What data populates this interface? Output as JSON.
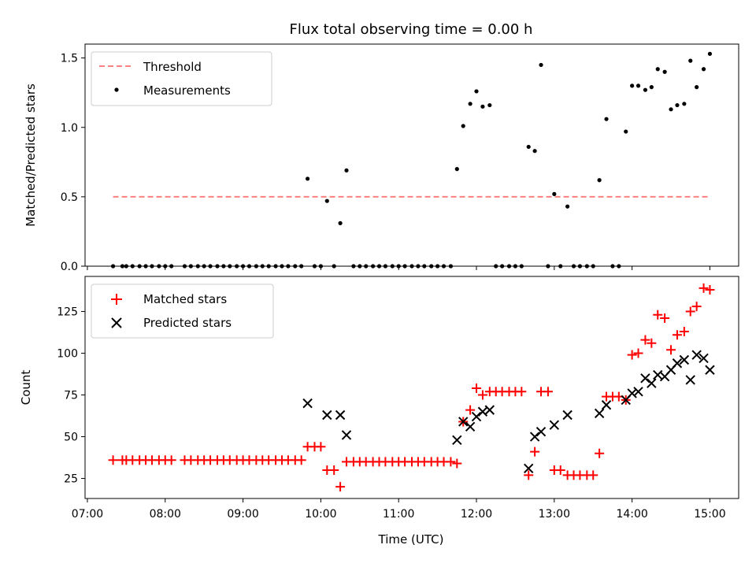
{
  "chart_data": {
    "title": "Flux total observing time = 0.00 h",
    "xlabel": "Time (UTC)",
    "x_tick_labels": [
      "07:00",
      "08:00",
      "09:00",
      "10:00",
      "11:00",
      "12:00",
      "13:00",
      "14:00",
      "15:00"
    ],
    "x_ticks_hours": [
      7,
      8,
      9,
      10,
      11,
      12,
      13,
      14,
      15
    ],
    "xlim_hours": [
      6.97,
      15.37
    ],
    "panels": [
      {
        "type": "scatter",
        "ylabel": "Matched/Predicted stars",
        "ylim": [
          0,
          1.6
        ],
        "y_ticks": [
          0.0,
          0.5,
          1.0,
          1.5
        ],
        "y_tick_labels": [
          "0.0",
          "0.5",
          "1.0",
          "1.5"
        ],
        "legend": {
          "position": "top-left",
          "entries": [
            "Threshold",
            "Measurements"
          ]
        },
        "threshold": {
          "name": "Threshold",
          "value": 0.5,
          "x_range_hours": [
            7.33,
            15.0
          ],
          "color": "#ff8080",
          "style": "dashed"
        },
        "series": [
          {
            "name": "Measurements",
            "color": "#000000",
            "marker": "dot",
            "x_hours": [
              7.33,
              7.45,
              7.5,
              7.58,
              7.67,
              7.75,
              7.83,
              7.92,
              8.0,
              8.08,
              8.25,
              8.33,
              8.42,
              8.5,
              8.58,
              8.67,
              8.75,
              8.83,
              8.92,
              9.0,
              9.08,
              9.17,
              9.25,
              9.33,
              9.42,
              9.5,
              9.58,
              9.67,
              9.75,
              9.83,
              9.92,
              10.0,
              10.08,
              10.17,
              10.25,
              10.33,
              10.42,
              10.5,
              10.58,
              10.67,
              10.75,
              10.83,
              10.92,
              11.0,
              11.08,
              11.17,
              11.25,
              11.33,
              11.42,
              11.5,
              11.58,
              11.67,
              11.75,
              11.83,
              11.92,
              12.0,
              12.08,
              12.17,
              12.25,
              12.33,
              12.42,
              12.5,
              12.58,
              12.67,
              12.75,
              12.83,
              12.92,
              13.0,
              13.08,
              13.17,
              13.25,
              13.33,
              13.42,
              13.5,
              13.58,
              13.67,
              13.75,
              13.83,
              13.92,
              14.0,
              14.08,
              14.17,
              14.25,
              14.33,
              14.42,
              14.5,
              14.58,
              14.67,
              14.75,
              14.83,
              14.92,
              15.0
            ],
            "y": [
              0,
              0,
              0,
              0,
              0,
              0,
              0,
              0,
              0,
              0,
              0,
              0,
              0,
              0,
              0,
              0,
              0,
              0,
              0,
              0,
              0,
              0,
              0,
              0,
              0,
              0,
              0,
              0,
              0,
              0.63,
              0,
              0,
              0.47,
              0,
              0.31,
              0.69,
              0,
              0,
              0,
              0,
              0,
              0,
              0,
              0,
              0,
              0,
              0,
              0,
              0,
              0,
              0,
              0,
              0.7,
              1.01,
              1.17,
              1.26,
              1.15,
              1.16,
              0,
              0,
              0,
              0,
              0,
              0.86,
              0.83,
              1.45,
              0,
              0.52,
              0,
              0.43,
              0,
              0,
              0,
              0,
              0.62,
              1.06,
              0,
              0,
              0.97,
              1.3,
              1.3,
              1.27,
              1.29,
              1.42,
              1.4,
              1.13,
              1.16,
              1.17,
              1.48,
              1.29,
              1.42,
              1.53
            ]
          }
        ]
      },
      {
        "type": "scatter",
        "ylabel": "Count",
        "ylim": [
          13,
          146
        ],
        "y_ticks": [
          25,
          50,
          75,
          100,
          125
        ],
        "y_tick_labels": [
          "25",
          "50",
          "75",
          "100",
          "125"
        ],
        "legend": {
          "position": "top-left",
          "entries": [
            "Matched stars",
            "Predicted stars"
          ]
        },
        "series": [
          {
            "name": "Matched stars",
            "color": "#ff0000",
            "marker": "plus",
            "x_hours": [
              7.33,
              7.45,
              7.5,
              7.58,
              7.67,
              7.75,
              7.83,
              7.92,
              8.0,
              8.08,
              8.25,
              8.33,
              8.42,
              8.5,
              8.58,
              8.67,
              8.75,
              8.83,
              8.92,
              9.0,
              9.08,
              9.17,
              9.25,
              9.33,
              9.42,
              9.5,
              9.58,
              9.67,
              9.75,
              9.83,
              9.92,
              10.0,
              10.08,
              10.17,
              10.25,
              10.33,
              10.42,
              10.5,
              10.58,
              10.67,
              10.75,
              10.83,
              10.92,
              11.0,
              11.08,
              11.17,
              11.25,
              11.33,
              11.42,
              11.5,
              11.58,
              11.67,
              11.75,
              11.83,
              11.92,
              12.0,
              12.08,
              12.17,
              12.25,
              12.33,
              12.42,
              12.5,
              12.58,
              12.67,
              12.75,
              12.83,
              12.92,
              13.0,
              13.08,
              13.17,
              13.25,
              13.33,
              13.42,
              13.5,
              13.58,
              13.67,
              13.75,
              13.83,
              13.92,
              14.0,
              14.08,
              14.17,
              14.25,
              14.33,
              14.42,
              14.5,
              14.58,
              14.67,
              14.75,
              14.83,
              14.92,
              15.0
            ],
            "y": [
              36,
              36,
              36,
              36,
              36,
              36,
              36,
              36,
              36,
              36,
              36,
              36,
              36,
              36,
              36,
              36,
              36,
              36,
              36,
              36,
              36,
              36,
              36,
              36,
              36,
              36,
              36,
              36,
              36,
              44,
              44,
              44,
              30,
              30,
              20,
              35,
              35,
              35,
              35,
              35,
              35,
              35,
              35,
              35,
              35,
              35,
              35,
              35,
              35,
              35,
              35,
              35,
              34,
              59,
              66,
              79,
              75,
              77,
              77,
              77,
              77,
              77,
              77,
              27,
              41,
              77,
              77,
              30,
              30,
              27,
              27,
              27,
              27,
              27,
              40,
              74,
              74,
              74,
              72,
              99,
              100,
              108,
              106,
              123,
              121,
              102,
              111,
              113,
              125,
              128,
              139,
              138
            ]
          },
          {
            "name": "Predicted stars",
            "color": "#000000",
            "marker": "x",
            "x_hours": [
              9.83,
              10.08,
              10.25,
              10.33,
              11.75,
              11.83,
              11.92,
              12.0,
              12.08,
              12.17,
              12.67,
              12.75,
              12.83,
              13.0,
              13.17,
              13.58,
              13.67,
              13.92,
              14.0,
              14.08,
              14.17,
              14.25,
              14.33,
              14.42,
              14.5,
              14.58,
              14.67,
              14.75,
              14.83,
              14.92,
              15.0
            ],
            "y": [
              70,
              63,
              63,
              51,
              48,
              59,
              56,
              62,
              65,
              66,
              31,
              50,
              53,
              57,
              63,
              64,
              69,
              72,
              76,
              77,
              85,
              82,
              87,
              86,
              90,
              94,
              96,
              84,
              99,
              97,
              90
            ]
          }
        ]
      }
    ]
  }
}
